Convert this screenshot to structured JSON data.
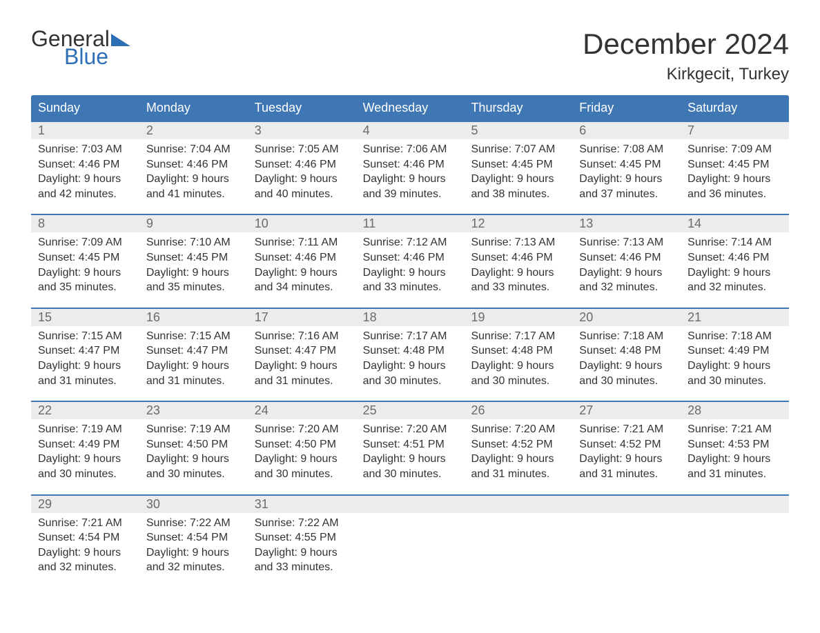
{
  "logo": {
    "word1": "General",
    "word2": "Blue"
  },
  "title": "December 2024",
  "location": "Kirkgecit, Turkey",
  "colors": {
    "header_bg": "#3f77b4",
    "header_text": "#ffffff",
    "daynum_bg": "#ececec",
    "daynum_border": "#3f77b4",
    "daynum_text": "#6a6a6a",
    "body_text": "#333333",
    "logo_blue": "#2c6fb5",
    "page_bg": "#ffffff"
  },
  "typography": {
    "month_title_pt": 42,
    "location_pt": 24,
    "dayhead_pt": 18,
    "daynum_pt": 18,
    "body_pt": 16,
    "family": "Arial"
  },
  "day_headers": [
    "Sunday",
    "Monday",
    "Tuesday",
    "Wednesday",
    "Thursday",
    "Friday",
    "Saturday"
  ],
  "weeks": [
    [
      {
        "n": "1",
        "sr": "7:03 AM",
        "ss": "4:46 PM",
        "dl": "9 hours and 42 minutes."
      },
      {
        "n": "2",
        "sr": "7:04 AM",
        "ss": "4:46 PM",
        "dl": "9 hours and 41 minutes."
      },
      {
        "n": "3",
        "sr": "7:05 AM",
        "ss": "4:46 PM",
        "dl": "9 hours and 40 minutes."
      },
      {
        "n": "4",
        "sr": "7:06 AM",
        "ss": "4:46 PM",
        "dl": "9 hours and 39 minutes."
      },
      {
        "n": "5",
        "sr": "7:07 AM",
        "ss": "4:45 PM",
        "dl": "9 hours and 38 minutes."
      },
      {
        "n": "6",
        "sr": "7:08 AM",
        "ss": "4:45 PM",
        "dl": "9 hours and 37 minutes."
      },
      {
        "n": "7",
        "sr": "7:09 AM",
        "ss": "4:45 PM",
        "dl": "9 hours and 36 minutes."
      }
    ],
    [
      {
        "n": "8",
        "sr": "7:09 AM",
        "ss": "4:45 PM",
        "dl": "9 hours and 35 minutes."
      },
      {
        "n": "9",
        "sr": "7:10 AM",
        "ss": "4:45 PM",
        "dl": "9 hours and 35 minutes."
      },
      {
        "n": "10",
        "sr": "7:11 AM",
        "ss": "4:46 PM",
        "dl": "9 hours and 34 minutes."
      },
      {
        "n": "11",
        "sr": "7:12 AM",
        "ss": "4:46 PM",
        "dl": "9 hours and 33 minutes."
      },
      {
        "n": "12",
        "sr": "7:13 AM",
        "ss": "4:46 PM",
        "dl": "9 hours and 33 minutes."
      },
      {
        "n": "13",
        "sr": "7:13 AM",
        "ss": "4:46 PM",
        "dl": "9 hours and 32 minutes."
      },
      {
        "n": "14",
        "sr": "7:14 AM",
        "ss": "4:46 PM",
        "dl": "9 hours and 32 minutes."
      }
    ],
    [
      {
        "n": "15",
        "sr": "7:15 AM",
        "ss": "4:47 PM",
        "dl": "9 hours and 31 minutes."
      },
      {
        "n": "16",
        "sr": "7:15 AM",
        "ss": "4:47 PM",
        "dl": "9 hours and 31 minutes."
      },
      {
        "n": "17",
        "sr": "7:16 AM",
        "ss": "4:47 PM",
        "dl": "9 hours and 31 minutes."
      },
      {
        "n": "18",
        "sr": "7:17 AM",
        "ss": "4:48 PM",
        "dl": "9 hours and 30 minutes."
      },
      {
        "n": "19",
        "sr": "7:17 AM",
        "ss": "4:48 PM",
        "dl": "9 hours and 30 minutes."
      },
      {
        "n": "20",
        "sr": "7:18 AM",
        "ss": "4:48 PM",
        "dl": "9 hours and 30 minutes."
      },
      {
        "n": "21",
        "sr": "7:18 AM",
        "ss": "4:49 PM",
        "dl": "9 hours and 30 minutes."
      }
    ],
    [
      {
        "n": "22",
        "sr": "7:19 AM",
        "ss": "4:49 PM",
        "dl": "9 hours and 30 minutes."
      },
      {
        "n": "23",
        "sr": "7:19 AM",
        "ss": "4:50 PM",
        "dl": "9 hours and 30 minutes."
      },
      {
        "n": "24",
        "sr": "7:20 AM",
        "ss": "4:50 PM",
        "dl": "9 hours and 30 minutes."
      },
      {
        "n": "25",
        "sr": "7:20 AM",
        "ss": "4:51 PM",
        "dl": "9 hours and 30 minutes."
      },
      {
        "n": "26",
        "sr": "7:20 AM",
        "ss": "4:52 PM",
        "dl": "9 hours and 31 minutes."
      },
      {
        "n": "27",
        "sr": "7:21 AM",
        "ss": "4:52 PM",
        "dl": "9 hours and 31 minutes."
      },
      {
        "n": "28",
        "sr": "7:21 AM",
        "ss": "4:53 PM",
        "dl": "9 hours and 31 minutes."
      }
    ],
    [
      {
        "n": "29",
        "sr": "7:21 AM",
        "ss": "4:54 PM",
        "dl": "9 hours and 32 minutes."
      },
      {
        "n": "30",
        "sr": "7:22 AM",
        "ss": "4:54 PM",
        "dl": "9 hours and 32 minutes."
      },
      {
        "n": "31",
        "sr": "7:22 AM",
        "ss": "4:55 PM",
        "dl": "9 hours and 33 minutes."
      },
      null,
      null,
      null,
      null
    ]
  ],
  "labels": {
    "sunrise": "Sunrise: ",
    "sunset": "Sunset: ",
    "daylight": "Daylight: "
  }
}
